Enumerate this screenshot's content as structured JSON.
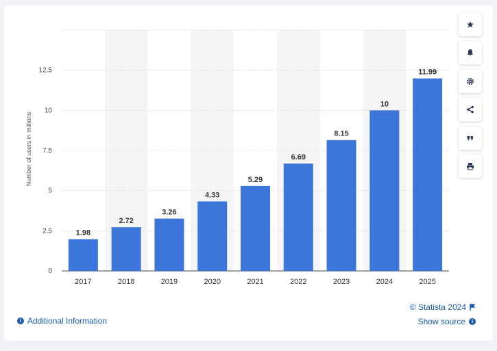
{
  "chart_data": {
    "type": "bar",
    "categories": [
      "2017",
      "2018",
      "2019",
      "2020",
      "2021",
      "2022",
      "2023",
      "2024",
      "2025"
    ],
    "values": [
      1.98,
      2.72,
      3.26,
      4.33,
      5.29,
      6.69,
      8.15,
      10,
      11.99
    ],
    "value_labels": [
      "1.98",
      "2.72",
      "3.26",
      "4.33",
      "5.29",
      "6.69",
      "8.15",
      "10",
      "11.99"
    ],
    "ylabel": "Number of users in millions",
    "xlabel": "",
    "ylim": [
      0,
      15
    ],
    "yticks": [
      0,
      2.5,
      5,
      7.5,
      10,
      12.5
    ],
    "ytick_labels": [
      "0",
      "2.5",
      "5",
      "7.5",
      "10",
      "12.5"
    ],
    "grid": true,
    "bar_color": "#3d76db"
  },
  "sidebar": {
    "buttons": [
      {
        "icon": "star-icon",
        "name": "favorite-button"
      },
      {
        "icon": "bell-icon",
        "name": "notification-button"
      },
      {
        "icon": "gear-icon",
        "name": "settings-button"
      },
      {
        "icon": "share-icon",
        "name": "share-button"
      },
      {
        "icon": "quote-icon",
        "name": "cite-button"
      },
      {
        "icon": "print-icon",
        "name": "print-button"
      }
    ]
  },
  "footer": {
    "credit": "© Statista 2024",
    "show_source": "Show source",
    "additional_info": "Additional Information"
  },
  "colors": {
    "accent": "#1a5aab",
    "bar": "#3d76db",
    "band": "#f4f5f7"
  }
}
